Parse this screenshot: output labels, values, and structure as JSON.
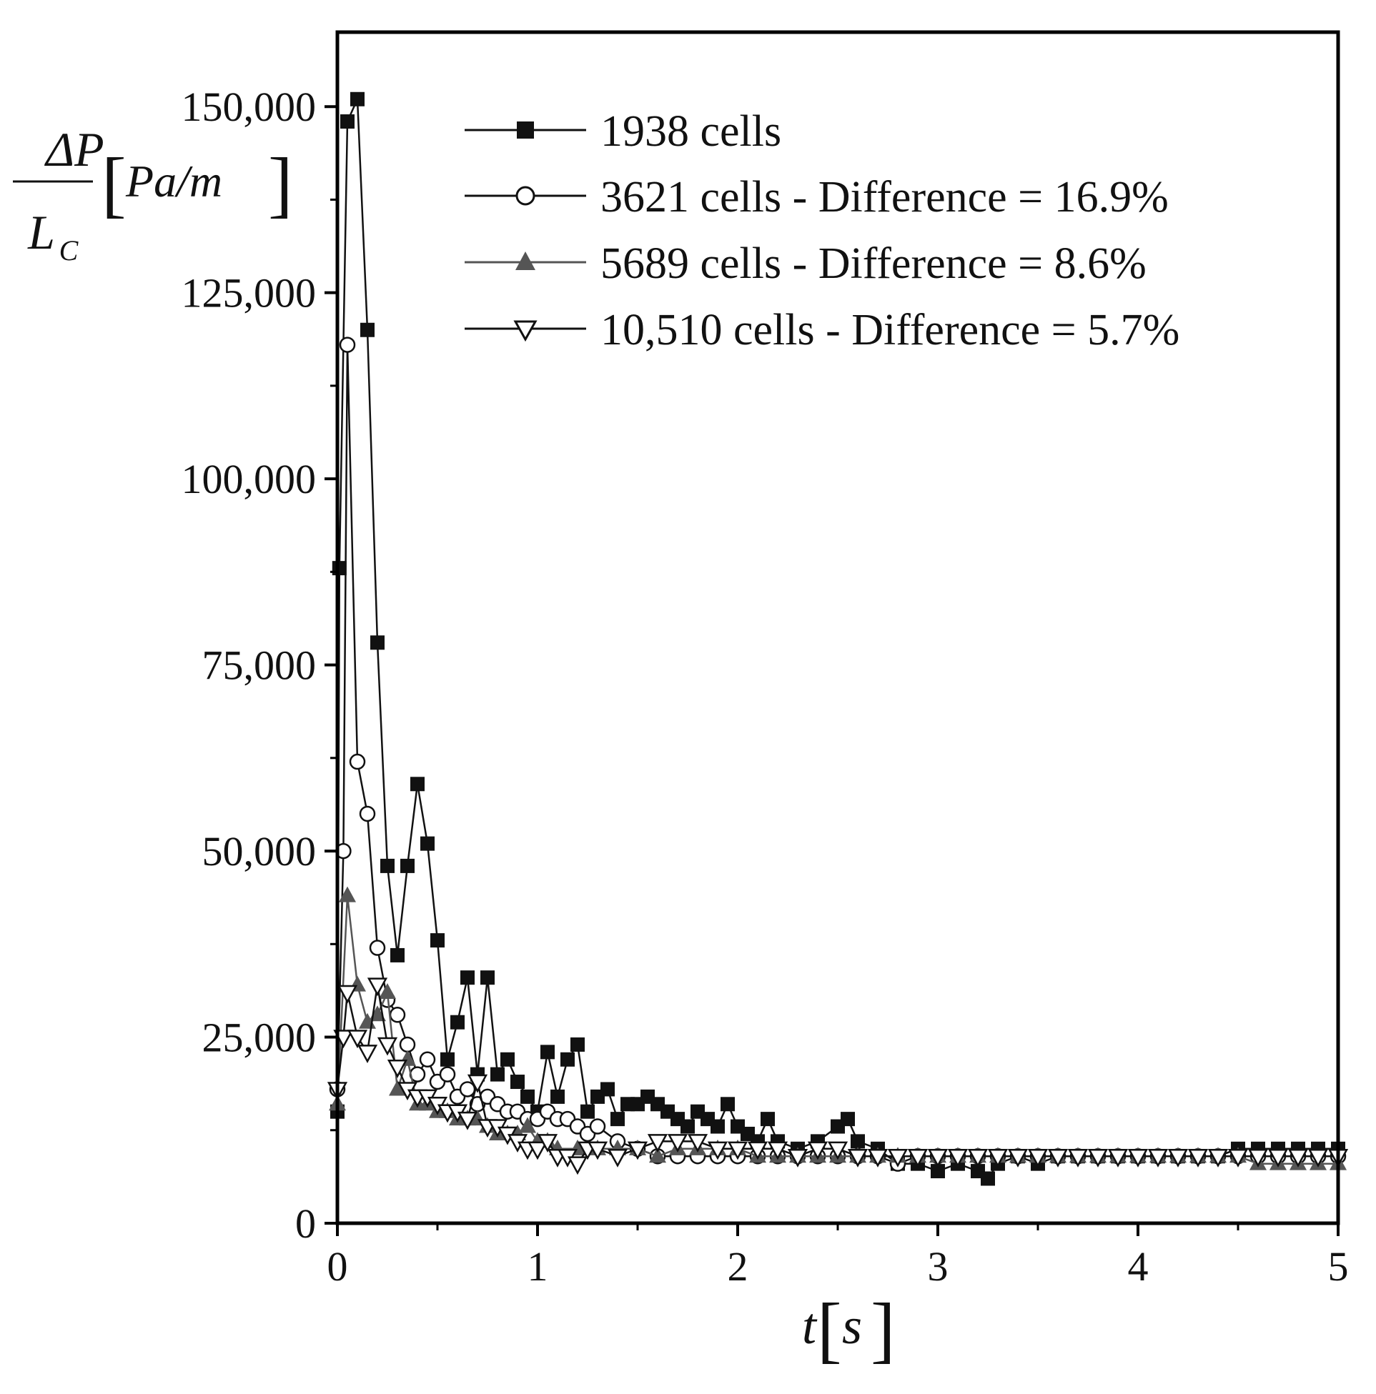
{
  "chart_data": {
    "type": "line",
    "title": "",
    "xlabel": {
      "symbol": "t",
      "unit": "s"
    },
    "ylabel": {
      "numerator": "ΔP",
      "denominator": "L",
      "denominator_sub": "C",
      "unit": "Pa/m"
    },
    "xlim": [
      0,
      5
    ],
    "ylim": [
      0,
      160000
    ],
    "x_ticks": [
      0,
      1,
      2,
      3,
      4,
      5
    ],
    "x_tick_labels": [
      "0",
      "1",
      "2",
      "3",
      "4",
      "5"
    ],
    "y_ticks": [
      0,
      25000,
      50000,
      75000,
      100000,
      125000,
      150000
    ],
    "y_tick_labels": [
      "0",
      "25,000",
      "50,000",
      "75,000",
      "100,000",
      "125,000",
      "150,000"
    ],
    "legend_position": "top-right",
    "grid": false,
    "series": [
      {
        "name": "1938 cells",
        "marker": "square-filled",
        "color": "#111111",
        "x": [
          0,
          0.01,
          0.05,
          0.1,
          0.15,
          0.2,
          0.25,
          0.3,
          0.35,
          0.4,
          0.45,
          0.5,
          0.55,
          0.6,
          0.65,
          0.7,
          0.75,
          0.8,
          0.85,
          0.9,
          0.95,
          1.0,
          1.05,
          1.1,
          1.15,
          1.2,
          1.25,
          1.3,
          1.35,
          1.4,
          1.45,
          1.5,
          1.55,
          1.6,
          1.65,
          1.7,
          1.75,
          1.8,
          1.85,
          1.9,
          1.95,
          2.0,
          2.05,
          2.1,
          2.15,
          2.2,
          2.3,
          2.4,
          2.5,
          2.55,
          2.6,
          2.7,
          2.8,
          2.9,
          3.0,
          3.1,
          3.2,
          3.25,
          3.3,
          3.4,
          3.5,
          3.6,
          3.7,
          3.8,
          3.9,
          4.0,
          4.1,
          4.2,
          4.3,
          4.4,
          4.5,
          4.6,
          4.7,
          4.8,
          4.9,
          5.0
        ],
        "values": [
          15000,
          88000,
          148000,
          151000,
          120000,
          78000,
          48000,
          36000,
          48000,
          59000,
          51000,
          38000,
          22000,
          27000,
          33000,
          20000,
          33000,
          20000,
          22000,
          19000,
          17000,
          15000,
          23000,
          17000,
          22000,
          24000,
          15000,
          17000,
          18000,
          14000,
          16000,
          16000,
          17000,
          16000,
          15000,
          14000,
          13000,
          15000,
          14000,
          13000,
          16000,
          13000,
          12000,
          11000,
          14000,
          11000,
          10000,
          11000,
          13000,
          14000,
          11000,
          10000,
          8000,
          8000,
          7000,
          8000,
          7000,
          6000,
          8000,
          9000,
          8000,
          9000,
          9000,
          9000,
          9000,
          9000,
          9000,
          9000,
          9000,
          9000,
          10000,
          10000,
          10000,
          10000,
          10000,
          10000
        ]
      },
      {
        "name": "3621 cells - Difference = 16.9%",
        "marker": "circle-open",
        "color": "#111111",
        "x": [
          0,
          0.03,
          0.05,
          0.1,
          0.15,
          0.2,
          0.25,
          0.3,
          0.35,
          0.4,
          0.45,
          0.5,
          0.55,
          0.6,
          0.65,
          0.7,
          0.75,
          0.8,
          0.85,
          0.9,
          0.95,
          1.0,
          1.05,
          1.1,
          1.15,
          1.2,
          1.25,
          1.3,
          1.4,
          1.5,
          1.6,
          1.7,
          1.8,
          1.9,
          2.0,
          2.1,
          2.2,
          2.3,
          2.4,
          2.5,
          2.6,
          2.7,
          2.8,
          2.9,
          3.0,
          3.1,
          3.2,
          3.3,
          3.4,
          3.5,
          3.6,
          3.7,
          3.8,
          3.9,
          4.0,
          4.1,
          4.2,
          4.3,
          4.4,
          4.5,
          4.6,
          4.7,
          4.8,
          4.9,
          5.0
        ],
        "values": [
          18000,
          50000,
          118000,
          62000,
          55000,
          37000,
          30000,
          28000,
          24000,
          20000,
          22000,
          19000,
          20000,
          17000,
          18000,
          16000,
          17000,
          16000,
          15000,
          15000,
          14000,
          14000,
          15000,
          14000,
          14000,
          13000,
          12000,
          13000,
          11000,
          10000,
          9000,
          9000,
          9000,
          9000,
          9000,
          9000,
          9000,
          9000,
          9000,
          9000,
          9000,
          9000,
          8000,
          9000,
          9000,
          9000,
          9000,
          9000,
          9000,
          9000,
          9000,
          9000,
          9000,
          9000,
          9000,
          9000,
          9000,
          9000,
          9000,
          9000,
          9000,
          9000,
          9000,
          9000,
          9000
        ]
      },
      {
        "name": "5689 cells - Difference = 8.6%",
        "marker": "triangle-up-filled",
        "color": "#555555",
        "x": [
          0,
          0.05,
          0.1,
          0.15,
          0.2,
          0.25,
          0.3,
          0.35,
          0.4,
          0.45,
          0.5,
          0.55,
          0.6,
          0.65,
          0.7,
          0.75,
          0.8,
          0.85,
          0.9,
          0.95,
          1.0,
          1.05,
          1.1,
          1.2,
          1.3,
          1.4,
          1.5,
          1.6,
          1.7,
          1.8,
          1.9,
          2.0,
          2.1,
          2.2,
          2.3,
          2.4,
          2.5,
          2.6,
          2.7,
          2.8,
          2.9,
          3.0,
          3.1,
          3.2,
          3.3,
          3.4,
          3.5,
          3.6,
          3.7,
          3.8,
          3.9,
          4.0,
          4.1,
          4.2,
          4.3,
          4.4,
          4.5,
          4.6,
          4.7,
          4.8,
          4.9,
          5.0
        ],
        "values": [
          16000,
          44000,
          32000,
          27000,
          28000,
          31000,
          18000,
          22000,
          16000,
          16000,
          15000,
          15000,
          14000,
          14000,
          14000,
          13000,
          12000,
          12000,
          12000,
          13000,
          11000,
          11000,
          10000,
          10000,
          10000,
          10000,
          10000,
          9000,
          10000,
          10000,
          10000,
          10000,
          9000,
          9000,
          9000,
          9000,
          9000,
          9000,
          9000,
          9000,
          9000,
          9000,
          9000,
          9000,
          9000,
          9000,
          9000,
          9000,
          9000,
          9000,
          9000,
          9000,
          9000,
          9000,
          9000,
          9000,
          9000,
          8000,
          8000,
          8000,
          8000,
          8000
        ]
      },
      {
        "name": "10,510 cells - Difference = 5.7%",
        "marker": "triangle-down-open",
        "color": "#111111",
        "x": [
          0,
          0.03,
          0.05,
          0.1,
          0.15,
          0.2,
          0.25,
          0.3,
          0.35,
          0.4,
          0.45,
          0.5,
          0.55,
          0.6,
          0.65,
          0.7,
          0.75,
          0.8,
          0.85,
          0.9,
          0.95,
          1.0,
          1.05,
          1.1,
          1.15,
          1.2,
          1.25,
          1.3,
          1.4,
          1.5,
          1.6,
          1.7,
          1.8,
          1.9,
          2.0,
          2.1,
          2.2,
          2.3,
          2.4,
          2.5,
          2.6,
          2.7,
          2.8,
          2.9,
          3.0,
          3.1,
          3.2,
          3.3,
          3.4,
          3.5,
          3.6,
          3.7,
          3.8,
          3.9,
          4.0,
          4.1,
          4.2,
          4.3,
          4.4,
          4.5,
          4.6,
          4.7,
          4.8,
          4.9,
          5.0
        ],
        "values": [
          18000,
          25000,
          31000,
          25000,
          23000,
          32000,
          24000,
          21000,
          18000,
          17000,
          17000,
          16000,
          15000,
          15000,
          14000,
          19000,
          13000,
          13000,
          12000,
          11000,
          10000,
          10000,
          11000,
          9000,
          9000,
          8000,
          10000,
          10000,
          9000,
          10000,
          11000,
          11000,
          11000,
          10000,
          10000,
          10000,
          10000,
          9000,
          10000,
          10000,
          9000,
          9000,
          9000,
          9000,
          9000,
          9000,
          9000,
          9000,
          9000,
          9000,
          9000,
          9000,
          9000,
          9000,
          9000,
          9000,
          9000,
          9000,
          9000,
          9000,
          9000,
          9000,
          9000,
          9000,
          9000
        ]
      }
    ]
  }
}
